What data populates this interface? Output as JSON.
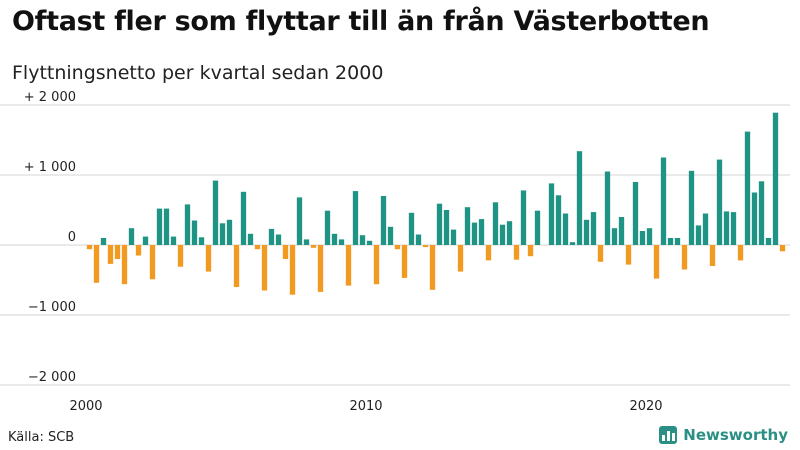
{
  "header": {
    "title": "Oftast fler som flyttar till än från Västerbotten",
    "subtitle": "Flyttningsnetto per kvartal sedan 2000"
  },
  "footer": {
    "source": "Källa: SCB",
    "brand": "Newsworthy"
  },
  "colors": {
    "positive": "#1f9484",
    "negative": "#f29a1f",
    "brand": "#2a8f84"
  },
  "chart_data": {
    "type": "bar",
    "title": "Oftast fler som flyttar till än från Västerbotten",
    "subtitle": "Flyttningsnetto per kvartal sedan 2000",
    "xlabel": "",
    "ylabel": "",
    "ylim": [
      -2000,
      2000
    ],
    "yticks": [
      {
        "value": 2000,
        "label": "+ 2 000"
      },
      {
        "value": 1000,
        "label": "+ 1 000"
      },
      {
        "value": 0,
        "label": "0"
      },
      {
        "value": -1000,
        "label": "−1 000"
      },
      {
        "value": -2000,
        "label": "−2 000"
      }
    ],
    "xticks": [
      {
        "value": 2000,
        "label": "2000"
      },
      {
        "value": 2010,
        "label": "2010"
      },
      {
        "value": 2020,
        "label": "2020"
      }
    ],
    "grid": true,
    "legend": "none",
    "x_start_year": 2000,
    "periods_per_year": 4,
    "values": [
      -60,
      -540,
      100,
      -270,
      -200,
      -560,
      240,
      -150,
      120,
      -490,
      520,
      520,
      120,
      -310,
      580,
      350,
      110,
      -380,
      920,
      310,
      360,
      -600,
      760,
      160,
      -60,
      -650,
      230,
      150,
      -200,
      -710,
      680,
      80,
      -40,
      -670,
      490,
      160,
      80,
      -580,
      770,
      140,
      60,
      -560,
      700,
      260,
      -60,
      -470,
      460,
      150,
      -30,
      -640,
      590,
      500,
      220,
      -380,
      540,
      320,
      370,
      -220,
      610,
      290,
      340,
      -210,
      780,
      -160,
      490,
      0,
      880,
      710,
      450,
      40,
      1340,
      360,
      470,
      -240,
      1050,
      240,
      400,
      -280,
      900,
      200,
      240,
      -480,
      1250,
      100,
      100,
      -350,
      1060,
      280,
      450,
      -300,
      1220,
      480,
      470,
      -220,
      1620,
      750,
      910,
      100,
      1890,
      -90
    ]
  }
}
